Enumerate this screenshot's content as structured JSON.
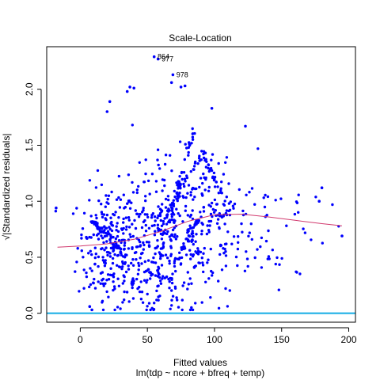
{
  "chart_data": {
    "type": "scatter",
    "title": "Scale-Location",
    "xlabel": "Fitted values",
    "xlabel_sub": "lm(tdp ~ ncore + bfreq + temp)",
    "ylabel": "√|Standardized residuals|",
    "xlim": [
      -25,
      205
    ],
    "ylim": [
      -0.08,
      2.38
    ],
    "xticks": [
      0,
      50,
      100,
      150,
      200
    ],
    "xtick_labels": [
      "0",
      "50",
      "100",
      "150",
      "200"
    ],
    "yticks": [
      0.0,
      0.5,
      1.0,
      1.5,
      2.0
    ],
    "ytick_labels": [
      "0.0",
      "0.5",
      "1.0",
      "1.5",
      "2.0"
    ],
    "grid": false,
    "colors": {
      "points": "#0000ff",
      "smoother": "#d13a6e",
      "baseline": "#1fb0e6",
      "frame": "#000000"
    },
    "baseline_y": 0.0,
    "smoother": {
      "x": [
        -17,
        0,
        20,
        40,
        60,
        80,
        100,
        120,
        140,
        160,
        180,
        195
      ],
      "y": [
        0.59,
        0.6,
        0.62,
        0.66,
        0.73,
        0.82,
        0.88,
        0.885,
        0.86,
        0.83,
        0.8,
        0.78
      ]
    },
    "annotations": [
      {
        "label": "864",
        "x": 57,
        "y": 2.29
      },
      {
        "label": "977",
        "x": 60,
        "y": 2.27
      },
      {
        "label": "978",
        "x": 71,
        "y": 2.13
      }
    ],
    "highlight_points": [
      {
        "x": 55,
        "y": 2.29
      },
      {
        "x": 58,
        "y": 2.27
      },
      {
        "x": 69,
        "y": 2.13
      },
      {
        "x": 37,
        "y": 2.02
      },
      {
        "x": 35,
        "y": 1.98
      },
      {
        "x": 40,
        "y": 2.01
      },
      {
        "x": 68,
        "y": 2.06
      },
      {
        "x": 75,
        "y": 2.02
      },
      {
        "x": 78,
        "y": 2.03
      },
      {
        "x": 22,
        "y": 1.89
      },
      {
        "x": 20,
        "y": 1.8
      },
      {
        "x": -18,
        "y": 0.94
      },
      {
        "x": 195,
        "y": 0.69
      },
      {
        "x": 180,
        "y": 1.12
      },
      {
        "x": 178,
        "y": 1.0
      },
      {
        "x": 98,
        "y": 1.83
      },
      {
        "x": 123,
        "y": 1.67
      },
      {
        "x": 7,
        "y": 0.06
      }
    ],
    "clusters": [
      {
        "cx": 20,
        "cy": 0.6,
        "sx": 11,
        "sy": 0.27,
        "n": 200
      },
      {
        "cx": 45,
        "cy": 0.6,
        "sx": 14,
        "sy": 0.33,
        "n": 170
      },
      {
        "cx": 70,
        "cy": 0.65,
        "sx": 14,
        "sy": 0.36,
        "n": 190
      },
      {
        "cx": 100,
        "cy": 0.8,
        "sx": 16,
        "sy": 0.33,
        "n": 130
      },
      {
        "cx": 140,
        "cy": 0.75,
        "sx": 22,
        "sy": 0.28,
        "n": 55
      }
    ],
    "line_streaks": [
      {
        "x0": 7,
        "y0": 0.85,
        "x1": 30,
        "y1": 0.55,
        "n": 45
      },
      {
        "x0": 58,
        "y0": 0.75,
        "x1": 92,
        "y1": 1.45,
        "n": 50
      },
      {
        "x0": 60,
        "y0": 0.55,
        "x1": 85,
        "y1": 1.65,
        "n": 40
      },
      {
        "x0": 92,
        "y0": 1.4,
        "x1": 112,
        "y1": 0.87,
        "n": 30
      },
      {
        "x0": 75,
        "y0": 0.55,
        "x1": 92,
        "y1": 0.95,
        "n": 25
      },
      {
        "x0": 80,
        "y0": 0.75,
        "x1": 92,
        "y1": 0.45,
        "n": 20
      },
      {
        "x0": 45,
        "y0": 0.38,
        "x1": 70,
        "y1": 0.3,
        "n": 25
      }
    ]
  }
}
